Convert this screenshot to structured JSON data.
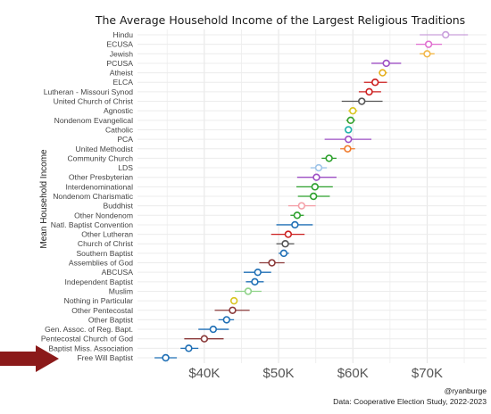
{
  "chart_data": {
    "type": "scatter",
    "title": "The Average Household Income of the Largest Religious Traditions",
    "ylabel": "Mean Household Income",
    "xlabel": "",
    "x_ticks": [
      "$40K",
      "$50K",
      "$60K",
      "$70K"
    ],
    "x_tick_values": [
      40000,
      50000,
      60000,
      70000
    ],
    "xlim": [
      31000,
      78000
    ],
    "grid": true,
    "legend": "none",
    "caption_lines": [
      "@ryanburge",
      "Data: Cooperative Election Study, 2022-2023"
    ],
    "points": [
      {
        "category": "Hindu",
        "value": 72500,
        "low": 69000,
        "high": 75500,
        "color": "#c9a0dc"
      },
      {
        "category": "ECUSA",
        "value": 70200,
        "low": 68500,
        "high": 72000,
        "color": "#e06fd0"
      },
      {
        "category": "Jewish",
        "value": 70000,
        "low": 69000,
        "high": 71000,
        "color": "#f2b84b"
      },
      {
        "category": "PCUSA",
        "value": 64500,
        "low": 62500,
        "high": 66500,
        "color": "#9d4fc4"
      },
      {
        "category": "Atheist",
        "value": 64000,
        "low": 63500,
        "high": 64600,
        "color": "#e5b020"
      },
      {
        "category": "ELCA",
        "value": 63000,
        "low": 61500,
        "high": 64600,
        "color": "#cc1f1f"
      },
      {
        "category": "Lutheran - Missouri Synod",
        "value": 62200,
        "low": 60800,
        "high": 63800,
        "color": "#cc1f1f"
      },
      {
        "category": "United Church of Christ",
        "value": 61200,
        "low": 58500,
        "high": 64000,
        "color": "#555555"
      },
      {
        "category": "Agnostic",
        "value": 60000,
        "low": 59400,
        "high": 60600,
        "color": "#d9c51f"
      },
      {
        "category": "Nondenom Evangelical",
        "value": 59700,
        "low": 59100,
        "high": 60300,
        "color": "#33a02c"
      },
      {
        "category": "Catholic",
        "value": 59400,
        "low": 59000,
        "high": 59800,
        "color": "#20b2aa"
      },
      {
        "category": "PCA",
        "value": 59400,
        "low": 56200,
        "high": 62500,
        "color": "#9d4fc4"
      },
      {
        "category": "United Methodist",
        "value": 59300,
        "low": 58300,
        "high": 60300,
        "color": "#f07a2a"
      },
      {
        "category": "Community Church",
        "value": 56800,
        "low": 55800,
        "high": 57800,
        "color": "#2ca02c"
      },
      {
        "category": "LDS",
        "value": 55400,
        "low": 54300,
        "high": 56500,
        "color": "#9ec4e8"
      },
      {
        "category": "Other Presbyterian",
        "value": 55100,
        "low": 52500,
        "high": 57800,
        "color": "#9d4fc4"
      },
      {
        "category": "Interdenominational",
        "value": 54900,
        "low": 52400,
        "high": 57300,
        "color": "#2ca02c"
      },
      {
        "category": "Nondenom Charismatic",
        "value": 54700,
        "low": 52600,
        "high": 56900,
        "color": "#2ca02c"
      },
      {
        "category": "Buddhist",
        "value": 53100,
        "low": 51300,
        "high": 55000,
        "color": "#f4a0a8"
      },
      {
        "category": "Other Nondenom",
        "value": 52500,
        "low": 51600,
        "high": 53400,
        "color": "#2ca02c"
      },
      {
        "category": "Natl. Baptist Convention",
        "value": 52200,
        "low": 49700,
        "high": 54600,
        "color": "#1f6fb5"
      },
      {
        "category": "Other Lutheran",
        "value": 51300,
        "low": 49000,
        "high": 53500,
        "color": "#cc1f1f"
      },
      {
        "category": "Church of Christ",
        "value": 50900,
        "low": 49700,
        "high": 52100,
        "color": "#555555"
      },
      {
        "category": "Southern Baptist",
        "value": 50700,
        "low": 50000,
        "high": 51400,
        "color": "#1f6fb5"
      },
      {
        "category": "Assemblies of God",
        "value": 49100,
        "low": 47400,
        "high": 50800,
        "color": "#8b3a3a"
      },
      {
        "category": "ABCUSA",
        "value": 47200,
        "low": 45300,
        "high": 49000,
        "color": "#1f6fb5"
      },
      {
        "category": "Independent Baptist",
        "value": 46800,
        "low": 45600,
        "high": 48000,
        "color": "#1f6fb5"
      },
      {
        "category": "Muslim",
        "value": 45900,
        "low": 44100,
        "high": 47700,
        "color": "#90d38a"
      },
      {
        "category": "Nothing in Particular",
        "value": 44000,
        "low": 43600,
        "high": 44400,
        "color": "#d9c51f"
      },
      {
        "category": "Other Pentecostal",
        "value": 43800,
        "low": 41400,
        "high": 46100,
        "color": "#8b3a3a"
      },
      {
        "category": "Other Baptist",
        "value": 43000,
        "low": 41900,
        "high": 44000,
        "color": "#1f6fb5"
      },
      {
        "category": "Gen. Assoc. of Reg. Bapt.",
        "value": 41200,
        "low": 39200,
        "high": 43300,
        "color": "#1f6fb5"
      },
      {
        "category": "Pentecostal Church of God",
        "value": 40000,
        "low": 37300,
        "high": 42600,
        "color": "#8b3a3a"
      },
      {
        "category": "Baptist Miss. Association",
        "value": 37900,
        "low": 36800,
        "high": 39200,
        "color": "#1f6fb5"
      },
      {
        "category": "Free Will Baptist",
        "value": 34800,
        "low": 33300,
        "high": 36300,
        "color": "#1f6fb5"
      }
    ]
  },
  "annotation": {
    "arrow_color": "#8b1a1a",
    "arrow_target": "Free Will Baptist"
  }
}
